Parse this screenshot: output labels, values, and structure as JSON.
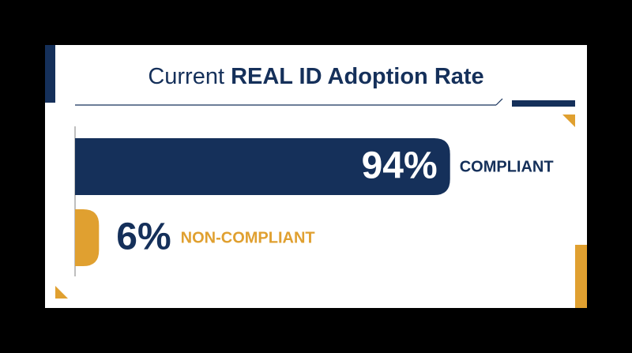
{
  "chart_data": {
    "type": "bar",
    "orientation": "horizontal",
    "title": "Current",
    "title_emphasis": "REAL ID Adoption Rate",
    "categories": [
      "COMPLIANT",
      "NON-COMPLIANT"
    ],
    "values": [
      94,
      6
    ],
    "value_labels": [
      "94%",
      "6%"
    ],
    "colors": [
      "#15305a",
      "#e0a030"
    ]
  }
}
